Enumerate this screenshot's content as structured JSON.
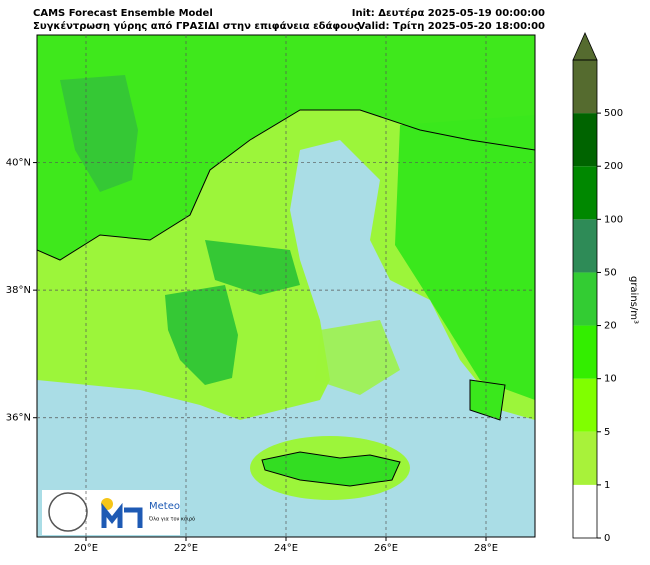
{
  "chart_data": {
    "type": "map",
    "title": "CAMS Forecast Ensemble Model",
    "subtitle": "Συγκέντρωση γύρης από ΓΡΑΣΙΔΙ στην επιφάνεια εδάφους",
    "init": "Init: Δευτέρα 2025-05-19 00:00:00",
    "valid": "Valid: Τρίτη 2025-05-20 18:00:00",
    "xlim": [
      19.02,
      28.98
    ],
    "ylim": [
      34.13,
      42.0
    ],
    "xticks": [
      {
        "value": 20,
        "label": "20°E"
      },
      {
        "value": 22,
        "label": "22°E"
      },
      {
        "value": 24,
        "label": "24°E"
      },
      {
        "value": 26,
        "label": "26°E"
      },
      {
        "value": 28,
        "label": "28°E"
      }
    ],
    "yticks": [
      {
        "value": 36,
        "label": "36°N"
      },
      {
        "value": 38,
        "label": "38°N"
      },
      {
        "value": 40,
        "label": "40°N"
      }
    ],
    "grid": true,
    "colorbar": {
      "label": "grains/m³",
      "ticks": [
        0,
        1,
        5,
        10,
        20,
        50,
        100,
        200,
        500
      ],
      "colors": [
        "#ffffff",
        "#a8f23a",
        "#80ff00",
        "#33ee00",
        "#33cc33",
        "#2e8b57",
        "#008800",
        "#006400",
        "#556b2f"
      ]
    }
  },
  "logo": {
    "brand": "Meteo",
    "slogan": "Όλα για τον καιρό"
  }
}
